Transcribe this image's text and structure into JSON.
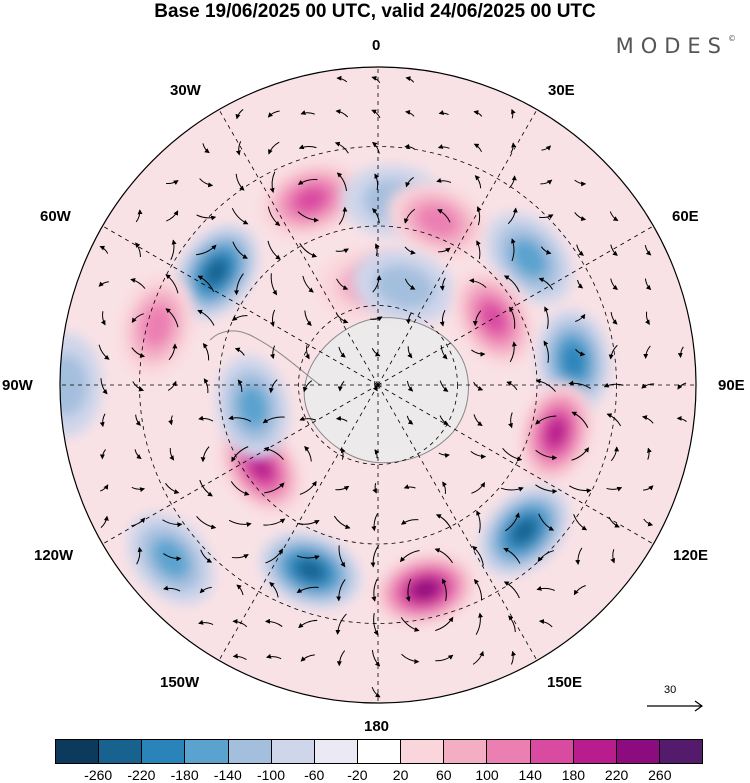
{
  "title": "Base 19/06/2025 00 UTC, valid 24/06/2025 00 UTC",
  "brand": "MODES",
  "brand_mark": "©",
  "projection": "south polar stereographic",
  "longitude_labels": {
    "lon_0": "0",
    "lon_30e": "30E",
    "lon_60e": "60E",
    "lon_90e": "90E",
    "lon_120e": "120E",
    "lon_150e": "150E",
    "lon_180": "180",
    "lon_150w": "150W",
    "lon_120w": "120W",
    "lon_90w": "90W",
    "lon_60w": "60W",
    "lon_30w": "30W"
  },
  "reference_vector": {
    "label": "30"
  },
  "colorbar": {
    "levels": [
      "-260",
      "-220",
      "-180",
      "-140",
      "-100",
      "-60",
      "-20",
      "20",
      "60",
      "100",
      "140",
      "180",
      "220",
      "260"
    ],
    "colors": [
      "#0c3a5c",
      "#17628f",
      "#2b84b9",
      "#5aa3cf",
      "#a4bfde",
      "#cfd6eb",
      "#ebe9f4",
      "#ffffff",
      "#fad6dc",
      "#f3aec4",
      "#ec7fb2",
      "#d94aa1",
      "#b81c8d",
      "#8c0b7f",
      "#541a6b"
    ]
  },
  "colors": {
    "negative_strong": "#0c3a5c",
    "negative_mid": "#2b84b9",
    "negative_weak": "#cfd6eb",
    "positive_weak": "#fad6dc",
    "positive_mid": "#ec7fb2",
    "positive_strong": "#8c0b7f",
    "land_outline": "#888888"
  },
  "anomalies": [
    {
      "sign": "neg",
      "strength": 4,
      "lon": -55,
      "colat": 0.62
    },
    {
      "sign": "pos",
      "strength": 3,
      "lon": -20,
      "colat": 0.62
    },
    {
      "sign": "neg",
      "strength": 1,
      "lon": 5,
      "colat": 0.58
    },
    {
      "sign": "pos",
      "strength": 2,
      "lon": 20,
      "colat": 0.55
    },
    {
      "sign": "neg",
      "strength": 2,
      "lon": 50,
      "colat": 0.62
    },
    {
      "sign": "pos",
      "strength": 1,
      "lon": -5,
      "colat": 0.32
    },
    {
      "sign": "neg",
      "strength": 1,
      "lon": 15,
      "colat": 0.32
    },
    {
      "sign": "pos",
      "strength": 3,
      "lon": 60,
      "colat": 0.42
    },
    {
      "sign": "neg",
      "strength": 3,
      "lon": 83,
      "colat": 0.62
    },
    {
      "sign": "pos",
      "strength": 4,
      "lon": 105,
      "colat": 0.58
    },
    {
      "sign": "neg",
      "strength": 4,
      "lon": 135,
      "colat": 0.65
    },
    {
      "sign": "pos",
      "strength": 5,
      "lon": 167,
      "colat": 0.66
    },
    {
      "sign": "neg",
      "strength": 4,
      "lon": -160,
      "colat": 0.62
    },
    {
      "sign": "pos",
      "strength": 4,
      "lon": -125,
      "colat": 0.45
    },
    {
      "sign": "neg",
      "strength": 2,
      "lon": -100,
      "colat": 0.4
    },
    {
      "sign": "pos",
      "strength": 2,
      "lon": -75,
      "colat": 0.72
    },
    {
      "sign": "neg",
      "strength": 2,
      "lon": -130,
      "colat": 0.85
    },
    {
      "sign": "neg",
      "strength": 1,
      "lon": -90,
      "colat": 0.98
    }
  ]
}
